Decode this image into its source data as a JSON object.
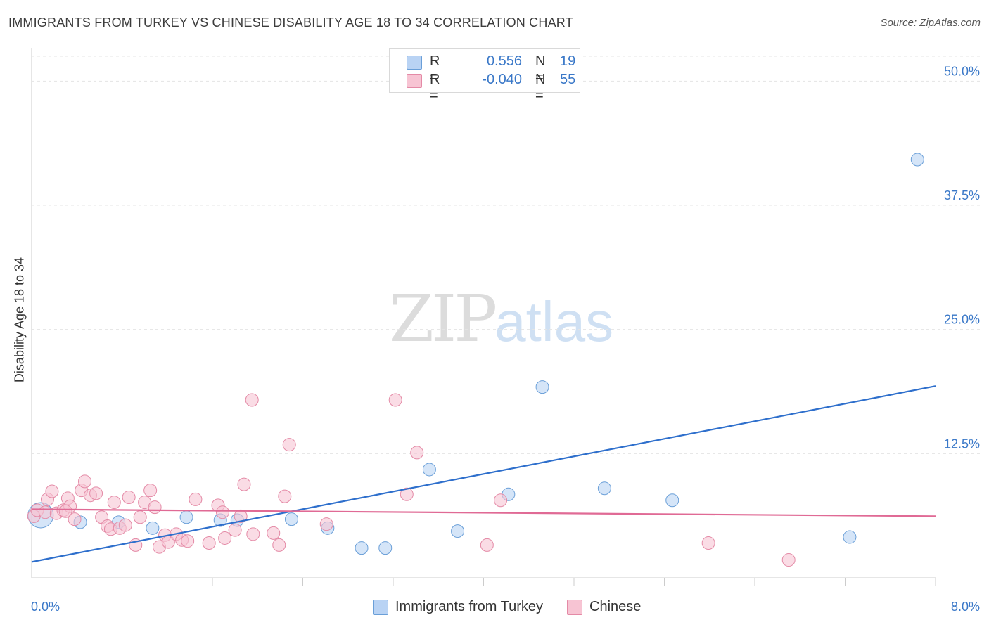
{
  "header": {
    "title": "IMMIGRANTS FROM TURKEY VS CHINESE DISABILITY AGE 18 TO 34 CORRELATION CHART",
    "source": "Source: ZipAtlas.com"
  },
  "watermark": {
    "zip": "ZIP",
    "atlas": "atlas"
  },
  "legend": {
    "rows": [
      {
        "r_label": "R =",
        "r_value": "0.556",
        "n_label": "N =",
        "n_value": "19",
        "color": "#b9d3f4"
      },
      {
        "r_label": "R =",
        "r_value": "-0.040",
        "n_label": "N =",
        "n_value": "55",
        "color": "#f7c4d3"
      }
    ]
  },
  "chart_data": {
    "type": "scatter",
    "ylabel": "Disability Age 18 to 34",
    "xlim": [
      0,
      8
    ],
    "ylim": [
      0,
      52.5
    ],
    "x_tick_labels": [
      "0.0%",
      "8.0%"
    ],
    "y_ticks": [
      12.5,
      25.0,
      37.5,
      50.0
    ],
    "y_tick_labels": [
      "12.5%",
      "25.0%",
      "37.5%",
      "50.0%"
    ],
    "grid": true,
    "legend_position": "top-center",
    "series": [
      {
        "name": "Immigrants from Turkey",
        "color": "#b9d3f4",
        "stroke": "#6a9fd8",
        "trend_color": "#2e6fcc",
        "trend": {
          "x": [
            0,
            8
          ],
          "y": [
            1.6,
            19.3
          ]
        },
        "points": [
          [
            0.08,
            6.3,
            18
          ],
          [
            0.43,
            5.6,
            9
          ],
          [
            0.77,
            5.6,
            9
          ],
          [
            1.07,
            5.0,
            9
          ],
          [
            1.37,
            6.1,
            9
          ],
          [
            1.67,
            5.8,
            9
          ],
          [
            1.82,
            5.8,
            9
          ],
          [
            2.3,
            5.9,
            9
          ],
          [
            2.62,
            5.0,
            9
          ],
          [
            2.92,
            3.0,
            9
          ],
          [
            3.13,
            3.0,
            9
          ],
          [
            3.52,
            10.9,
            9
          ],
          [
            3.77,
            4.7,
            9
          ],
          [
            4.22,
            8.4,
            9
          ],
          [
            4.52,
            19.2,
            9
          ],
          [
            5.07,
            9.0,
            9
          ],
          [
            5.67,
            7.8,
            9
          ],
          [
            7.24,
            4.1,
            9
          ],
          [
            7.84,
            42.1,
            9
          ]
        ]
      },
      {
        "name": "Chinese",
        "color": "#f7c4d3",
        "stroke": "#e48aa6",
        "trend_color": "#e06a95",
        "trend": {
          "x": [
            0,
            8
          ],
          "y": [
            6.9,
            6.2
          ]
        },
        "points": [
          [
            0.02,
            6.2,
            9
          ],
          [
            0.05,
            6.8,
            9
          ],
          [
            0.12,
            6.6,
            9
          ],
          [
            0.14,
            7.9,
            9
          ],
          [
            0.18,
            8.7,
            9
          ],
          [
            0.22,
            6.5,
            9
          ],
          [
            0.28,
            6.8,
            9
          ],
          [
            0.32,
            8.0,
            9
          ],
          [
            0.34,
            7.2,
            9
          ],
          [
            0.38,
            5.9,
            9
          ],
          [
            0.44,
            8.8,
            9
          ],
          [
            0.47,
            9.7,
            9
          ],
          [
            0.52,
            8.3,
            9
          ],
          [
            0.57,
            8.5,
            9
          ],
          [
            0.62,
            6.1,
            9
          ],
          [
            0.67,
            5.2,
            9
          ],
          [
            0.7,
            4.9,
            9
          ],
          [
            0.73,
            7.6,
            9
          ],
          [
            0.78,
            5.0,
            9
          ],
          [
            0.83,
            5.3,
            9
          ],
          [
            0.86,
            8.1,
            9
          ],
          [
            0.92,
            3.3,
            9
          ],
          [
            0.96,
            6.1,
            9
          ],
          [
            1.0,
            7.6,
            9
          ],
          [
            1.05,
            8.8,
            9
          ],
          [
            1.09,
            7.1,
            9
          ],
          [
            1.13,
            3.1,
            9
          ],
          [
            1.18,
            4.3,
            9
          ],
          [
            1.21,
            3.6,
            9
          ],
          [
            1.28,
            4.4,
            9
          ],
          [
            1.33,
            3.8,
            9
          ],
          [
            1.38,
            3.7,
            9
          ],
          [
            1.45,
            7.9,
            9
          ],
          [
            1.57,
            3.5,
            9
          ],
          [
            1.65,
            7.3,
            9
          ],
          [
            1.69,
            6.6,
            9
          ],
          [
            1.71,
            4.0,
            9
          ],
          [
            1.8,
            4.8,
            9
          ],
          [
            1.85,
            6.2,
            9
          ],
          [
            1.88,
            9.4,
            9
          ],
          [
            1.95,
            17.9,
            9
          ],
          [
            1.96,
            4.4,
            9
          ],
          [
            2.14,
            4.5,
            9
          ],
          [
            2.19,
            3.3,
            9
          ],
          [
            2.24,
            8.2,
            9
          ],
          [
            2.28,
            13.4,
            9
          ],
          [
            2.61,
            5.4,
            9
          ],
          [
            3.22,
            17.9,
            9
          ],
          [
            3.32,
            8.4,
            9
          ],
          [
            3.41,
            12.6,
            9
          ],
          [
            4.03,
            3.3,
            9
          ],
          [
            4.15,
            7.8,
            9
          ],
          [
            5.99,
            3.5,
            9
          ],
          [
            6.7,
            1.8,
            9
          ],
          [
            0.3,
            6.7,
            9
          ]
        ]
      }
    ]
  }
}
